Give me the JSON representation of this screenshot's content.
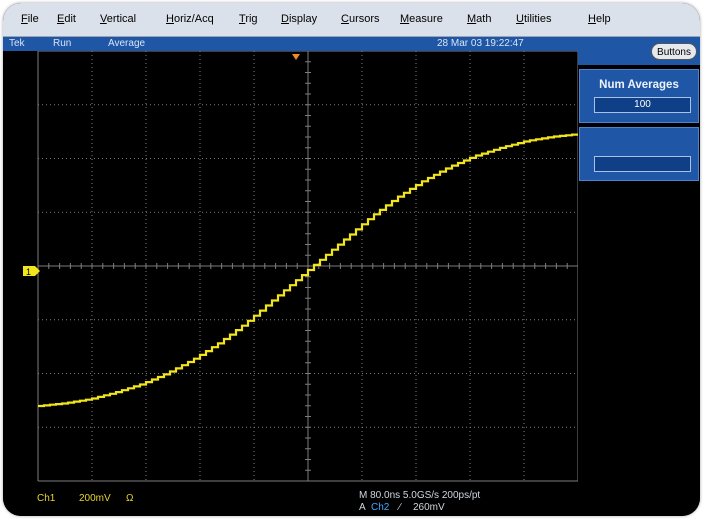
{
  "menu": [
    "File",
    "Edit",
    "Vertical",
    "Horiz/Acq",
    "Trig",
    "Display",
    "Cursors",
    "Measure",
    "Math",
    "Utilities",
    "Help"
  ],
  "status": {
    "brand": "Tek",
    "run_state": "Run",
    "mode": "Average",
    "datetime": "28 Mar 03 19:22:47"
  },
  "panel": {
    "buttons_label": "Buttons",
    "num_averages_title": "Num Averages",
    "num_averages_value": "100"
  },
  "channel_marker": "1",
  "readout": {
    "ch1_label": "Ch1",
    "ch1_scale": "200mV",
    "ch1_coupling": "Ω",
    "horizontal": "M 80.0ns 5.0GS/s  200ps/pt",
    "trigger_prefix": "A",
    "trigger_source": "Ch2",
    "trigger_slope": "∕",
    "trigger_level": "260mV"
  },
  "colors": {
    "trace": "#f2e51c",
    "menubar": "#dbe1ea",
    "statusbar": "#1f57a6",
    "panel_box": "#1f57a6",
    "grid": "#7d7d7d",
    "trigger_marker": "#f08a24"
  },
  "waveform": {
    "description_samples_level": [
      0.0,
      0.01,
      0.025,
      0.05,
      0.08,
      0.12,
      0.17,
      0.23,
      0.3,
      0.38,
      0.46,
      0.54,
      0.62,
      0.7,
      0.77,
      0.83,
      0.88,
      0.92,
      0.95,
      0.975,
      0.99,
      1.0
    ]
  }
}
